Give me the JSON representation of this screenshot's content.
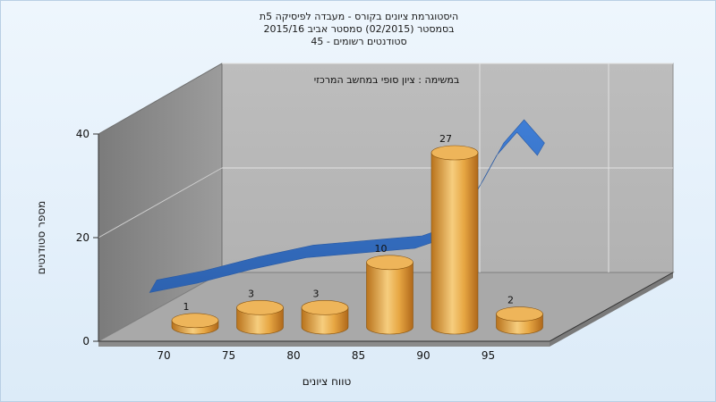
{
  "titles": [
    "היסטוגרמת ציונים בקורס - מעבדה לפיסיקה 5ת",
    "בסמסטר (02/2015) סמסטר אביב 2015/16",
    "סטודנטים רשומים - 45"
  ],
  "chart_data": {
    "type": "bar",
    "subtitle": "במשימה : ציון סופי במחשב המרכזי",
    "xlabel": "טווח ציונים",
    "ylabel": "מספר סטודנטים",
    "x_ticks": [
      "70",
      "75",
      "80",
      "85",
      "90",
      "95"
    ],
    "y_ticks": [
      "0",
      "20",
      "40"
    ],
    "ylim": [
      0,
      40
    ],
    "series": [
      {
        "type": "bar",
        "color": "#e1a23d",
        "categories": [
          "70",
          "75",
          "80",
          "85",
          "90",
          "95"
        ],
        "values": [
          1,
          3,
          3,
          10,
          27,
          2
        ],
        "labels": [
          "1",
          "3",
          "3",
          "10",
          "27",
          "2"
        ]
      },
      {
        "type": "area-ribbon",
        "color": "#3a70c2",
        "x": [
          68.5,
          72,
          76,
          80,
          84,
          86,
          88,
          89.5,
          91,
          92.5,
          94,
          95.5,
          97
        ],
        "values": [
          0.5,
          2.5,
          5.5,
          8,
          9,
          9.5,
          10,
          11.5,
          15,
          22,
          30,
          35,
          30
        ]
      }
    ],
    "grid": true,
    "style": "3d"
  }
}
